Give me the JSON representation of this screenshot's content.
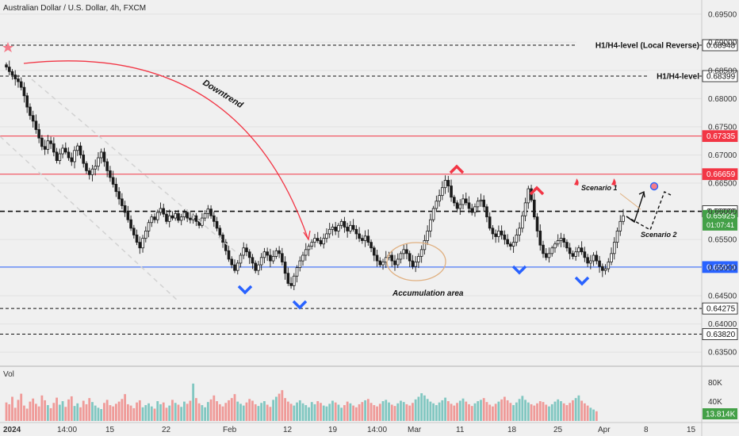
{
  "header": {
    "title": "Australian Dollar / U.S. Dollar, 4h, FXCM"
  },
  "colors": {
    "background": "#f0f0f0",
    "up": "#1a1a1a",
    "down": "#1a1a1a",
    "resistance": "#f23645",
    "support": "#2962ff",
    "dashed": "#111111",
    "vol_up": "#26a69a",
    "vol_down": "#ef5350",
    "price_tag": "#43a047"
  },
  "chart_data": {
    "type": "candlestick",
    "title": "Australian Dollar / U.S. Dollar, 4h, FXCM",
    "ylim": [
      0.6325,
      0.6975
    ],
    "y_ticks": [
      0.695,
      0.69,
      0.685,
      0.68,
      0.675,
      0.67,
      0.665,
      0.66,
      0.655,
      0.65,
      0.645,
      0.64,
      0.635
    ],
    "y_tick_labels": [
      "0.69500",
      "0.69000",
      "0.68500",
      "0.68000",
      "0.67500",
      "0.67000",
      "0.66500",
      "0.66000",
      "0.65500",
      "0.65000",
      "0.64500",
      "0.64000",
      "0.63500"
    ],
    "x_tick_labels": [
      "2024",
      "14:00",
      "15",
      "22",
      "Feb",
      "12",
      "19",
      "14:00",
      "Mar",
      "11",
      "18",
      "25",
      "Apr",
      "8",
      "15"
    ],
    "levels": [
      {
        "value": 0.68948,
        "label": "0.68948",
        "name": "H1/H4-level (Local Reverse)",
        "style": "dashed",
        "color": "#111111"
      },
      {
        "value": 0.68399,
        "label": "0.68399",
        "name": "H1/H4-level",
        "style": "dashed",
        "color": "#111111"
      },
      {
        "value": 0.67335,
        "label": "0.67335",
        "name": "",
        "style": "solid",
        "color": "#f23645"
      },
      {
        "value": 0.66659,
        "label": "0.66659",
        "name": "",
        "style": "solid",
        "color": "#f23645"
      },
      {
        "value": 0.66,
        "label": "0.66000",
        "name": "",
        "style": "dashed-bold",
        "color": "#111111"
      },
      {
        "value": 0.6501,
        "label": "0.65010",
        "name": "",
        "style": "solid",
        "color": "#2962ff"
      },
      {
        "value": 0.64275,
        "label": "0.64275",
        "name": "",
        "style": "dashed",
        "color": "#111111"
      },
      {
        "value": 0.6382,
        "label": "0.63820",
        "name": "",
        "style": "dashed",
        "color": "#111111"
      }
    ],
    "current_price": {
      "value": 0.65925,
      "label": "0.65925",
      "countdown": "01:07:41"
    },
    "closes": [
      0.6856,
      0.6848,
      0.6842,
      0.6835,
      0.683,
      0.682,
      0.6805,
      0.6785,
      0.677,
      0.676,
      0.6745,
      0.673,
      0.6715,
      0.671,
      0.6725,
      0.672,
      0.6705,
      0.669,
      0.6702,
      0.6712,
      0.6705,
      0.6695,
      0.6688,
      0.6708,
      0.6716,
      0.67,
      0.6685,
      0.6672,
      0.6665,
      0.6675,
      0.668,
      0.6695,
      0.6705,
      0.6688,
      0.6672,
      0.666,
      0.6648,
      0.6635,
      0.6622,
      0.661,
      0.6598,
      0.6585,
      0.657,
      0.6558,
      0.6545,
      0.6535,
      0.6552,
      0.6565,
      0.658,
      0.659,
      0.6585,
      0.6598,
      0.6605,
      0.6595,
      0.6582,
      0.6592,
      0.6588,
      0.6596,
      0.6584,
      0.659,
      0.6598,
      0.6588,
      0.6585,
      0.6592,
      0.6582,
      0.6575,
      0.6588,
      0.6596,
      0.6604,
      0.6592,
      0.6582,
      0.657,
      0.6558,
      0.6545,
      0.653,
      0.6515,
      0.6505,
      0.6495,
      0.6508,
      0.6522,
      0.6535,
      0.6528,
      0.6518,
      0.6508,
      0.6495,
      0.6505,
      0.6518,
      0.6528,
      0.6522,
      0.6512,
      0.652,
      0.653,
      0.6525,
      0.651,
      0.649,
      0.6472,
      0.6468,
      0.6485,
      0.65,
      0.6512,
      0.6522,
      0.6532,
      0.6538,
      0.6545,
      0.6552,
      0.6548,
      0.6542,
      0.6552,
      0.656,
      0.6568,
      0.6572,
      0.6565,
      0.6575,
      0.6582,
      0.6572,
      0.6565,
      0.6575,
      0.6568,
      0.656,
      0.6552,
      0.6548,
      0.6556,
      0.6545,
      0.6535,
      0.6522,
      0.6512,
      0.6505,
      0.651,
      0.6518,
      0.6522,
      0.6512,
      0.6505,
      0.6515,
      0.6525,
      0.6532,
      0.6525,
      0.6512,
      0.6502,
      0.651,
      0.652,
      0.6532,
      0.6548,
      0.6565,
      0.6585,
      0.6605,
      0.6618,
      0.6628,
      0.6642,
      0.6655,
      0.6645,
      0.6625,
      0.6615,
      0.6605,
      0.6612,
      0.6622,
      0.6615,
      0.6605,
      0.6598,
      0.6608,
      0.6618,
      0.662,
      0.6608,
      0.659,
      0.657,
      0.656,
      0.6555,
      0.6565,
      0.6558,
      0.655,
      0.6542,
      0.6538,
      0.6545,
      0.6558,
      0.657,
      0.6592,
      0.6615,
      0.664,
      0.662,
      0.659,
      0.6565,
      0.654,
      0.6525,
      0.6518,
      0.6525,
      0.6535,
      0.6542,
      0.6548,
      0.6552,
      0.6545,
      0.6535,
      0.6525,
      0.652,
      0.6528,
      0.6535,
      0.6528,
      0.6518,
      0.6508,
      0.6512,
      0.6522,
      0.6512,
      0.6502,
      0.6495,
      0.6498,
      0.651,
      0.6525,
      0.6545,
      0.6565,
      0.6582,
      0.6592
    ],
    "volume": [
      42,
      38,
      55,
      30,
      48,
      62,
      35,
      28,
      44,
      51,
      39,
      33,
      58,
      47,
      36,
      29,
      41,
      53,
      37,
      45,
      32,
      49,
      56,
      34,
      40,
      31,
      46,
      38,
      52,
      43,
      35,
      30,
      27,
      41,
      48,
      36,
      33,
      39,
      44,
      50,
      61,
      38,
      35,
      29,
      42,
      47,
      31,
      36,
      40,
      33,
      28,
      45,
      38,
      42,
      30,
      35,
      48,
      41,
      37,
      32,
      44,
      39,
      46,
      85,
      52,
      40,
      36,
      31,
      43,
      49,
      58,
      45,
      38,
      33,
      41,
      47,
      52,
      61,
      44,
      39,
      35,
      42,
      50,
      46,
      38,
      34,
      41,
      45,
      37,
      32,
      48,
      55,
      62,
      70,
      52,
      44,
      39,
      35,
      42,
      47,
      40,
      36,
      31,
      43,
      38,
      45,
      41,
      35,
      33,
      39,
      46,
      42,
      37,
      30,
      36,
      44,
      40,
      35,
      31,
      38,
      43,
      47,
      50,
      41,
      36,
      33,
      39,
      45,
      48,
      42,
      37,
      34,
      40,
      46,
      43,
      38,
      35,
      41,
      49,
      55,
      63,
      58,
      50,
      44,
      40,
      36,
      42,
      47,
      53,
      45,
      39,
      35,
      41,
      46,
      51,
      44,
      38,
      34,
      40,
      45,
      48,
      52,
      43,
      37,
      33,
      39,
      44,
      49,
      55,
      47,
      41,
      36,
      42,
      50,
      57,
      48,
      42,
      38,
      35,
      40,
      45,
      43,
      37,
      33,
      38,
      44,
      49,
      45,
      40,
      36,
      41,
      47,
      52,
      58,
      46,
      40,
      35,
      30,
      26,
      22
    ],
    "volume_axis": [
      "80K",
      "40K"
    ],
    "volume_current": "13.814K",
    "volume_label": "Vol"
  },
  "annotations": {
    "downtrend": "Downtrend",
    "accumulation": "Accumulation area",
    "scenario1": "Scenario 1",
    "scenario2": "Scenario 2"
  }
}
